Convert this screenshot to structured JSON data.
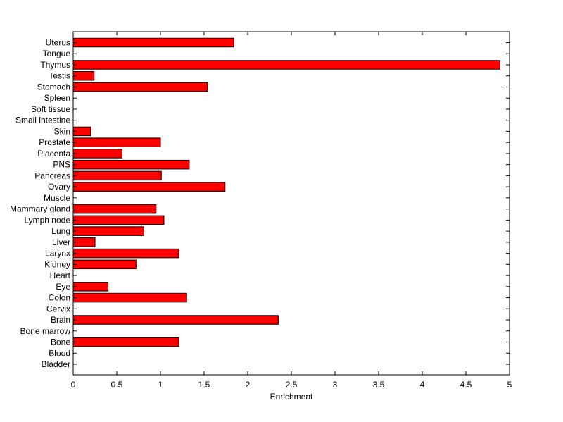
{
  "chart_data": {
    "type": "bar",
    "orientation": "horizontal",
    "title": "",
    "xlabel": "Enrichment",
    "ylabel": "",
    "xlim": [
      0,
      5
    ],
    "xticks": [
      "0",
      "0.5",
      "1",
      "1.5",
      "2",
      "2.5",
      "3",
      "3.5",
      "4",
      "4.5",
      "5"
    ],
    "grid": false,
    "bar_color": "#ff0000",
    "categories": [
      "Uterus",
      "Tongue",
      "Thymus",
      "Testis",
      "Stomach",
      "Spleen",
      "Soft tissue",
      "Small intestine",
      "Skin",
      "Prostate",
      "Placenta",
      "PNS",
      "Pancreas",
      "Ovary",
      "Muscle",
      "Mammary gland",
      "Lymph node",
      "Lung",
      "Liver",
      "Larynx",
      "Kidney",
      "Heart",
      "Eye",
      "Colon",
      "Cervix",
      "Brain",
      "Bone marrow",
      "Bone",
      "Blood",
      "Bladder"
    ],
    "values": [
      1.84,
      0,
      4.89,
      0.24,
      1.54,
      0,
      0,
      0,
      0.2,
      1.0,
      0.56,
      1.33,
      1.01,
      1.74,
      0,
      0.95,
      1.04,
      0.81,
      0.25,
      1.21,
      0.72,
      0,
      0.4,
      1.3,
      0,
      2.35,
      0,
      1.21,
      0,
      0
    ]
  }
}
